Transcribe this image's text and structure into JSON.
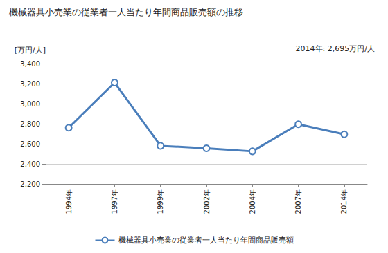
{
  "chart_data": {
    "type": "line",
    "title": "機械器具小売業の従業者一人当たり年間商品販売額の推移",
    "y_label": "[万円/人]",
    "annotation": "2014年: 2,695万円/人",
    "categories": [
      "1994年",
      "1997年",
      "1999年",
      "2002年",
      "2004年",
      "2007年",
      "2014年"
    ],
    "series": [
      {
        "name": "機械器具小売業の従業者一人当たり年間商品販売額",
        "color": "#4a7ebb",
        "marker": "circle",
        "values": [
          2760,
          3210,
          2580,
          2555,
          2525,
          2795,
          2695
        ]
      }
    ],
    "ylim": [
      2200,
      3400
    ],
    "yticks": [
      {
        "value": 2200,
        "label": "2,200"
      },
      {
        "value": 2400,
        "label": "2,400"
      },
      {
        "value": 2600,
        "label": "2,600"
      },
      {
        "value": 2800,
        "label": "2,800"
      },
      {
        "value": 3000,
        "label": "3,000"
      },
      {
        "value": 3200,
        "label": "3,200"
      },
      {
        "value": 3400,
        "label": "3,400"
      }
    ],
    "grid": true,
    "legend": "bottom"
  }
}
